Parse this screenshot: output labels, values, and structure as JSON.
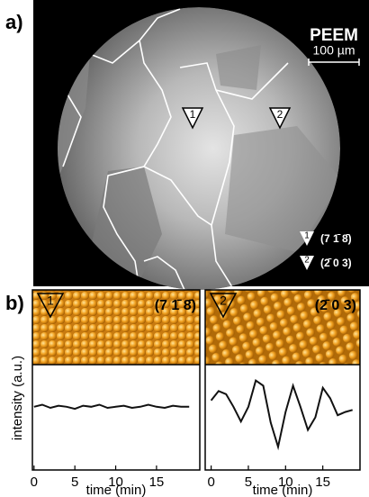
{
  "figure": {
    "panel_a_label": "a)",
    "panel_b_label": "b)",
    "image_label": "PEEM",
    "scale_bar": "100 µm",
    "markers": [
      {
        "label": "1",
        "plane": "(7 1̄ 8̄)"
      },
      {
        "label": "2",
        "plane": "(2̄ 0 3)"
      }
    ]
  },
  "chart_data": [
    {
      "type": "line",
      "xlabel": "time (min)",
      "ylabel": "intensity (a.u.)",
      "color": "#111",
      "x": [
        0,
        1,
        2,
        3,
        4,
        5,
        6,
        7,
        8,
        9,
        10,
        11,
        12,
        13,
        14,
        15,
        16,
        17,
        18,
        19
      ],
      "values": [
        0.6,
        0.62,
        0.59,
        0.61,
        0.6,
        0.58,
        0.61,
        0.6,
        0.62,
        0.59,
        0.6,
        0.61,
        0.59,
        0.6,
        0.62,
        0.6,
        0.59,
        0.61,
        0.6,
        0.6
      ],
      "xlim": [
        -0.2,
        20.3
      ],
      "xticks": [
        0,
        5,
        10,
        15
      ],
      "ylim": [
        0,
        1
      ]
    },
    {
      "type": "line",
      "xlabel": "time (min)",
      "color": "#111",
      "x": [
        0,
        1,
        2,
        3,
        4,
        5,
        6,
        7,
        8,
        9,
        10,
        11,
        12,
        13,
        14,
        15,
        16,
        17,
        18,
        19
      ],
      "values": [
        0.66,
        0.75,
        0.72,
        0.6,
        0.46,
        0.6,
        0.85,
        0.8,
        0.45,
        0.22,
        0.55,
        0.8,
        0.6,
        0.38,
        0.5,
        0.78,
        0.68,
        0.52,
        0.55,
        0.57
      ],
      "xlim": [
        -0.8,
        20
      ],
      "xticks": [
        0,
        5,
        10,
        15
      ],
      "ylim": [
        0,
        1
      ]
    }
  ]
}
